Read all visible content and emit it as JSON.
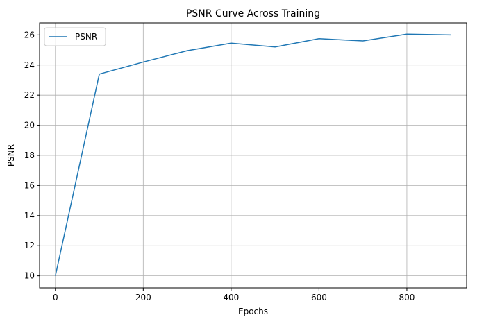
{
  "chart_data": {
    "type": "line",
    "title": "PSNR Curve Across Training",
    "xlabel": "Epochs",
    "ylabel": "PSNR",
    "xlim": [
      -36,
      936
    ],
    "ylim": [
      9.2,
      26.8
    ],
    "xticks": [
      0,
      200,
      400,
      600,
      800
    ],
    "yticks": [
      10,
      12,
      14,
      16,
      18,
      20,
      22,
      24,
      26
    ],
    "grid": true,
    "legend": {
      "placement": "upper-left"
    },
    "series": [
      {
        "name": "PSNR",
        "color": "#1f77b4",
        "x": [
          0,
          100,
          200,
          300,
          400,
          500,
          600,
          700,
          800,
          900
        ],
        "y": [
          10.0,
          23.4,
          24.2,
          24.95,
          25.45,
          25.2,
          25.75,
          25.6,
          26.05,
          26.0
        ]
      }
    ]
  }
}
